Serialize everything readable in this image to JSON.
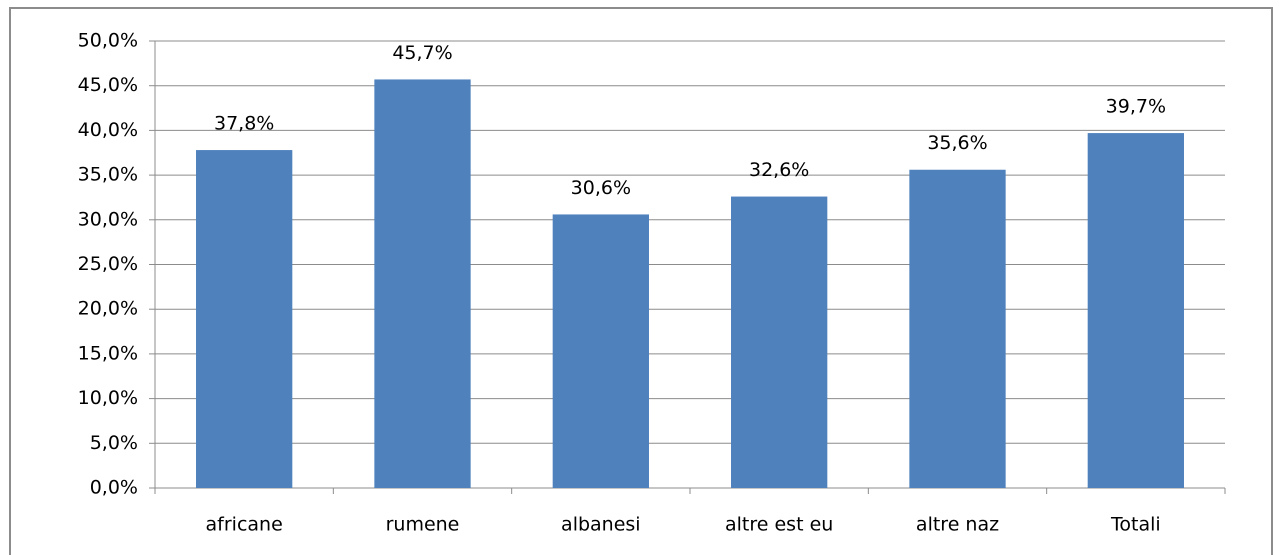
{
  "chart_data": {
    "type": "bar",
    "categories": [
      "africane",
      "rumene",
      "albanesi",
      "altre est eu",
      "altre naz",
      "Totali"
    ],
    "values": [
      37.8,
      45.7,
      30.6,
      32.6,
      35.6,
      39.7
    ],
    "value_labels": [
      "37,8%",
      "45,7%",
      "30,6%",
      "32,6%",
      "35,6%",
      "39,7%"
    ],
    "color": "#4f81bd",
    "ylim": [
      0,
      50
    ],
    "yticks": [
      {
        "value": 0,
        "label": "0,0%"
      },
      {
        "value": 5,
        "label": "5,0%"
      },
      {
        "value": 10,
        "label": "10,0%"
      },
      {
        "value": 15,
        "label": "15,0%"
      },
      {
        "value": 20,
        "label": "20,0%"
      },
      {
        "value": 25,
        "label": "25,0%"
      },
      {
        "value": 30,
        "label": "30,0%"
      },
      {
        "value": 35,
        "label": "35,0%"
      },
      {
        "value": 40,
        "label": "40,0%"
      },
      {
        "value": 45,
        "label": "45,0%"
      },
      {
        "value": 50,
        "label": "50,0%"
      }
    ],
    "grid": true
  }
}
